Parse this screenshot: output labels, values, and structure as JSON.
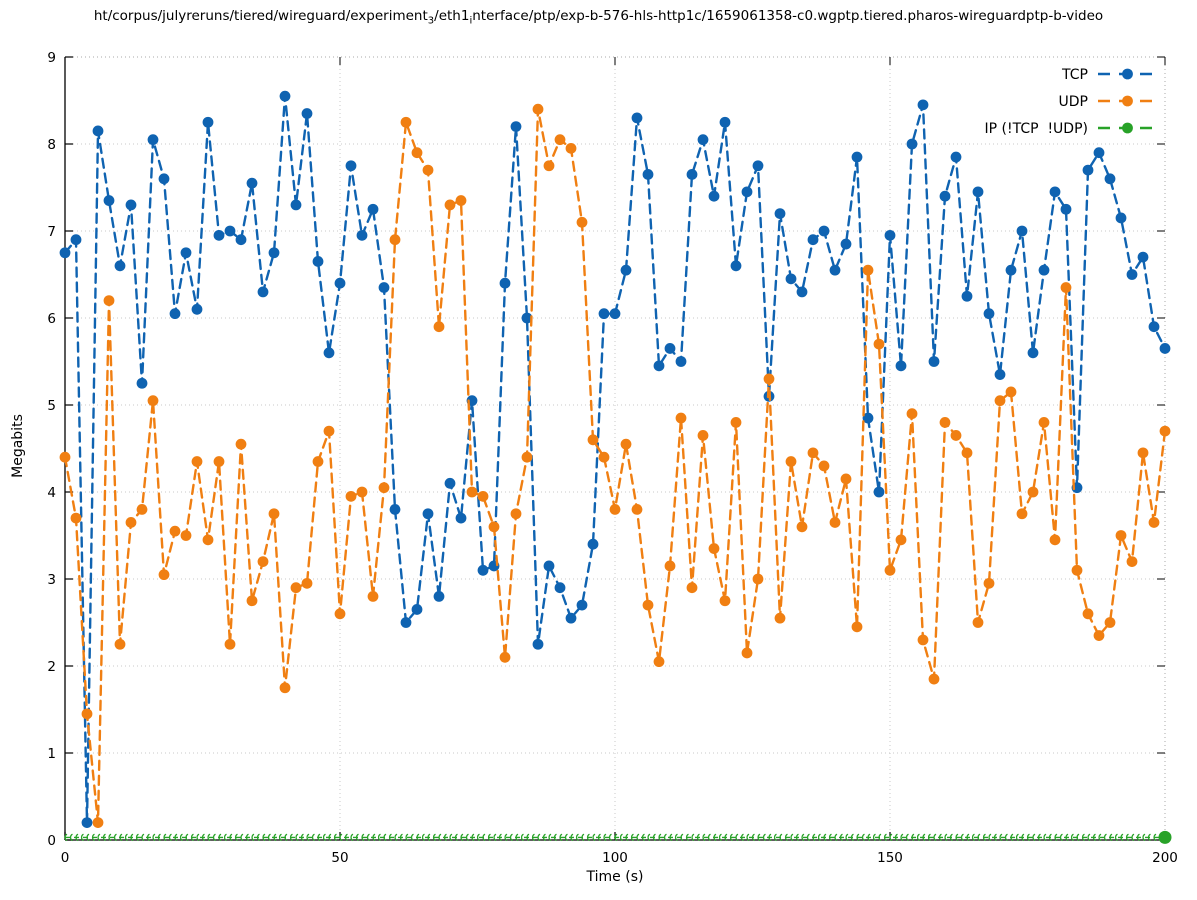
{
  "title_parts": [
    {
      "text": "ht/corpus/julyreruns/tiered/wireguard/experiment",
      "sub": false
    },
    {
      "text": "3",
      "sub": true
    },
    {
      "text": "/eth1",
      "sub": false
    },
    {
      "text": "i",
      "sub": true
    },
    {
      "text": "nterface/ptp/exp-b-576-hls-http1c/1659061358-c0.wgptp.tiered.pharos-wireguardptp-b-video",
      "sub": false
    }
  ],
  "title_plain": "ht/corpus/julyreruns/tiered/wireguard/experiment_3/eth1_interface/ptp/exp-b-576-hls-http1c/1659061358-c0.wgptp.tiered.pharos-wireguardptp-b-video",
  "axes": {
    "x_label": "Time (s)",
    "y_label": "Megabits",
    "x_ticks": [
      0,
      50,
      100,
      150,
      200
    ],
    "y_ticks": [
      0,
      1,
      2,
      3,
      4,
      5,
      6,
      7,
      8,
      9
    ],
    "x_range": [
      0,
      200
    ],
    "y_range": [
      0,
      9
    ],
    "grid": true
  },
  "legend": {
    "position": "top-right-inside",
    "items": [
      {
        "label": "TCP",
        "color": "#0f63b1"
      },
      {
        "label": "UDP",
        "color": "#f07f12"
      },
      {
        "label": "IP (!TCP  !UDP)",
        "color": "#28a228"
      }
    ]
  },
  "chart_data": {
    "type": "line",
    "marker": "filled-circle-with-dashed-line",
    "xlabel": "Time (s)",
    "ylabel": "Megabits",
    "xlim": [
      0,
      200
    ],
    "ylim": [
      0,
      9
    ],
    "x_start": 0,
    "x_step": 2,
    "series": [
      {
        "name": "TCP",
        "color": "#0f63b1",
        "values": [
          6.75,
          6.9,
          0.2,
          8.15,
          7.35,
          6.6,
          7.3,
          5.25,
          8.05,
          7.6,
          6.05,
          6.75,
          6.1,
          8.25,
          6.95,
          7.0,
          6.9,
          7.55,
          6.3,
          6.75,
          8.55,
          7.3,
          8.35,
          6.65,
          5.6,
          6.4,
          7.75,
          6.95,
          7.25,
          6.35,
          3.8,
          2.5,
          2.65,
          3.75,
          2.8,
          4.1,
          3.7,
          5.05,
          3.1,
          3.15,
          6.4,
          8.2,
          6.0,
          2.25,
          3.15,
          2.9,
          2.55,
          2.7,
          3.4,
          6.05,
          6.05,
          6.55,
          8.3,
          7.65,
          5.45,
          5.65,
          5.5,
          7.65,
          8.05,
          7.4,
          8.25,
          6.6,
          7.45,
          7.75,
          5.1,
          7.2,
          6.45,
          6.3,
          6.9,
          7.0,
          6.55,
          6.85,
          7.85,
          4.85,
          4.0,
          6.95,
          5.45,
          8.0,
          8.45,
          5.5,
          7.4,
          7.85,
          6.25,
          7.45,
          6.05,
          5.35,
          6.55,
          7.0,
          5.6,
          6.55,
          7.45,
          7.25,
          4.05,
          7.7,
          7.9,
          7.6,
          7.15,
          6.5,
          6.7,
          5.9,
          5.65
        ]
      },
      {
        "name": "UDP",
        "color": "#f07f12",
        "values": [
          4.4,
          3.7,
          1.45,
          0.2,
          6.2,
          2.25,
          3.65,
          3.8,
          5.05,
          3.05,
          3.55,
          3.5,
          4.35,
          3.45,
          4.35,
          2.25,
          4.55,
          2.75,
          3.2,
          3.75,
          1.75,
          2.9,
          2.95,
          4.35,
          4.7,
          2.6,
          3.95,
          4.0,
          2.8,
          4.05,
          6.9,
          8.25,
          7.9,
          7.7,
          5.9,
          7.3,
          7.35,
          4.0,
          3.95,
          3.6,
          2.1,
          3.75,
          4.4,
          8.4,
          7.75,
          8.05,
          7.95,
          7.1,
          4.6,
          4.4,
          3.8,
          4.55,
          3.8,
          2.7,
          2.05,
          3.15,
          4.85,
          2.9,
          4.65,
          3.35,
          2.75,
          4.8,
          2.15,
          3.0,
          5.3,
          2.55,
          4.35,
          3.6,
          4.45,
          4.3,
          3.65,
          4.15,
          2.45,
          6.55,
          5.7,
          3.1,
          3.45,
          4.9,
          2.3,
          1.85,
          4.8,
          4.65,
          4.45,
          2.5,
          2.95,
          5.05,
          5.15,
          3.75,
          4.0,
          4.8,
          3.45,
          6.35,
          3.1,
          2.6,
          2.35,
          2.5,
          3.5,
          3.2,
          4.45,
          3.65,
          4.7
        ]
      },
      {
        "name": "IP (!TCP  !UDP)",
        "color": "#28a228",
        "constant_value": 0.03,
        "marker_interval_s": 1,
        "big_endpoint_dot_at_x": 200
      }
    ]
  },
  "style": {
    "grid_color": "#c9c9c9",
    "axis_color": "#000000",
    "border_color": "#aaaaaa",
    "background": "#ffffff"
  }
}
